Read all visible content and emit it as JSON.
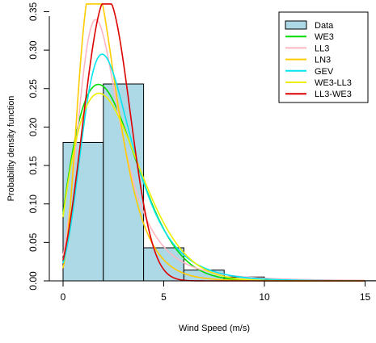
{
  "chart_data": {
    "type": "bar",
    "xlabel": "Wind Speed (m/s)",
    "ylabel": "Probability density function",
    "xlim": [
      0,
      15
    ],
    "ylim": [
      0,
      0.35
    ],
    "x_ticks": [
      "0",
      "5",
      "10",
      "15"
    ],
    "y_ticks": [
      "0.00",
      "0.05",
      "0.10",
      "0.15",
      "0.20",
      "0.25",
      "0.30",
      "0.35"
    ],
    "legend_position": "top-right",
    "histogram": {
      "name": "Data",
      "color": "#ADD8E6",
      "bins": [
        {
          "from": 0,
          "to": 2,
          "density": 0.18
        },
        {
          "from": 2,
          "to": 4,
          "density": 0.256
        },
        {
          "from": 4,
          "to": 6,
          "density": 0.043
        },
        {
          "from": 6,
          "to": 8,
          "density": 0.014
        },
        {
          "from": 8,
          "to": 10,
          "density": 0.005
        },
        {
          "from": 10,
          "to": 12,
          "density": 0.0015
        },
        {
          "from": 12,
          "to": 14,
          "density": 0.0005
        },
        {
          "from": 14,
          "to": 16,
          "density": 0.0002
        }
      ]
    },
    "series": [
      {
        "name": "WE3",
        "color": "#00DD00",
        "dist": "weibull",
        "params": {
          "k": 1.85,
          "lambda": 3.2,
          "loc": -0.35
        }
      },
      {
        "name": "LL3",
        "color": "#FFB6C1",
        "dist": "loglogistic",
        "params": {
          "alpha": 2.6,
          "beta": 3.2,
          "loc": -0.5
        }
      },
      {
        "name": "LN3",
        "color": "#FFCC00",
        "dist": "lognormal",
        "params": {
          "mu": 1.05,
          "sigma": 0.38,
          "loc": -0.95
        }
      },
      {
        "name": "GEV",
        "color": "#00E5EE",
        "dist": "gev",
        "params": {
          "mu": 2.0,
          "sigma": 1.25,
          "xi": 0.05
        }
      },
      {
        "name": "WE3-LL3",
        "color": "#EEEE00",
        "dist": "weibull",
        "params": {
          "k": 1.8,
          "lambda": 3.3,
          "loc": -0.32
        }
      },
      {
        "name": "LL3-WE3",
        "color": "#DD0000",
        "dist": "weibull",
        "params": {
          "k": 2.85,
          "lambda": 3.05,
          "loc": -0.45
        }
      }
    ]
  }
}
